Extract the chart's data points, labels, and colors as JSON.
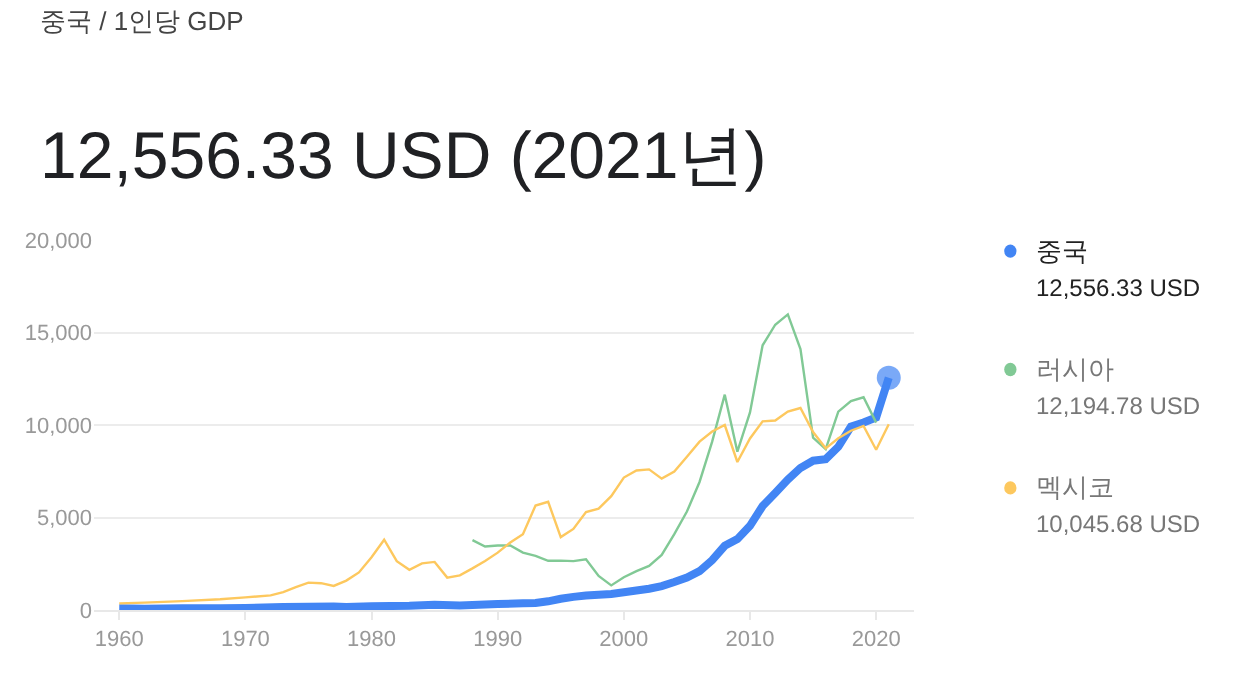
{
  "chart_data": {
    "type": "line",
    "title": "중국 / 1인당 GDP",
    "subtitle": "12,556.33 USD (2021년)",
    "series": [
      {
        "name": "중국",
        "color": "#4285f4",
        "x": [
          1960,
          1962,
          1965,
          1968,
          1970,
          1973,
          1975,
          1977,
          1978,
          1980,
          1983,
          1985,
          1987,
          1990,
          1992,
          1993,
          1994,
          1995,
          1996,
          1997,
          1998,
          1999,
          2000,
          2001,
          2002,
          2003,
          2004,
          2005,
          2006,
          2007,
          2008,
          2009,
          2010,
          2011,
          2012,
          2013,
          2014,
          2015,
          2016,
          2017,
          2018,
          2019,
          2020,
          2021
        ],
        "values": [
          90,
          70,
          100,
          90,
          110,
          160,
          180,
          190,
          160,
          200,
          230,
          290,
          250,
          320,
          370,
          380,
          470,
          610,
          710,
          780,
          830,
          870,
          960,
          1050,
          1150,
          1290,
          1510,
          1750,
          2100,
          2690,
          3470,
          3830,
          4550,
          5620,
          6320,
          7050,
          7680,
          8070,
          8150,
          8820,
          9910,
          10140,
          10410,
          12556.33
        ]
      },
      {
        "name": "러시아",
        "color": "#81c995",
        "x": [
          1988,
          1989,
          1990,
          1991,
          1992,
          1993,
          1994,
          1995,
          1996,
          1997,
          1998,
          1999,
          2000,
          2001,
          2002,
          2003,
          2004,
          2005,
          2006,
          2007,
          2008,
          2009,
          2010,
          2011,
          2012,
          2013,
          2014,
          2015,
          2016,
          2017,
          2018,
          2019,
          2020
        ],
        "values": [
          3780,
          3430,
          3490,
          3490,
          3100,
          2930,
          2660,
          2670,
          2640,
          2740,
          1840,
          1330,
          1770,
          2100,
          2380,
          2980,
          4100,
          5320,
          6920,
          9100,
          11640,
          8560,
          10680,
          14310,
          15420,
          15980,
          14100,
          9310,
          8700,
          10720,
          11290,
          11500,
          10130
        ]
      },
      {
        "name": "멕시코",
        "color": "#fdc85e",
        "x": [
          1960,
          1962,
          1965,
          1968,
          1970,
          1972,
          1973,
          1974,
          1975,
          1976,
          1977,
          1978,
          1979,
          1980,
          1981,
          1982,
          1983,
          1984,
          1985,
          1986,
          1987,
          1988,
          1989,
          1990,
          1991,
          1992,
          1993,
          1994,
          1995,
          1996,
          1997,
          1998,
          1999,
          2000,
          2001,
          2002,
          2003,
          2004,
          2005,
          2006,
          2007,
          2008,
          2009,
          2010,
          2011,
          2012,
          2013,
          2014,
          2015,
          2016,
          2017,
          2018,
          2019,
          2020,
          2021
        ],
        "values": [
          360,
          400,
          480,
          580,
          680,
          790,
          970,
          1240,
          1480,
          1450,
          1300,
          1590,
          2030,
          2850,
          3800,
          2640,
          2170,
          2520,
          2600,
          1750,
          1870,
          2250,
          2650,
          3100,
          3650,
          4100,
          5650,
          5850,
          3940,
          4380,
          5290,
          5480,
          6150,
          7160,
          7540,
          7600,
          7100,
          7480,
          8280,
          9100,
          9650,
          10000,
          8000,
          9270,
          10200,
          10240,
          10730,
          10920,
          9620,
          8740,
          9280,
          9690,
          9950,
          8660,
          10045.68
        ]
      }
    ],
    "annotations": [
      "12,556.33 USD",
      "12,194.78 USD",
      "10,045.68 USD"
    ],
    "xlim": [
      1958,
      2023
    ],
    "xticks": [
      1960,
      1970,
      1980,
      1990,
      2000,
      2010,
      2020
    ],
    "ylim": [
      0,
      20000
    ],
    "yticks": [
      {
        "value": 0,
        "label": "0"
      },
      {
        "value": 5000,
        "label": "5,000"
      },
      {
        "value": 10000,
        "label": "10,000"
      },
      {
        "value": 15000,
        "label": "15,000"
      },
      {
        "value": 20000,
        "label": "20,000"
      }
    ],
    "grid": "y",
    "legend": "right"
  }
}
